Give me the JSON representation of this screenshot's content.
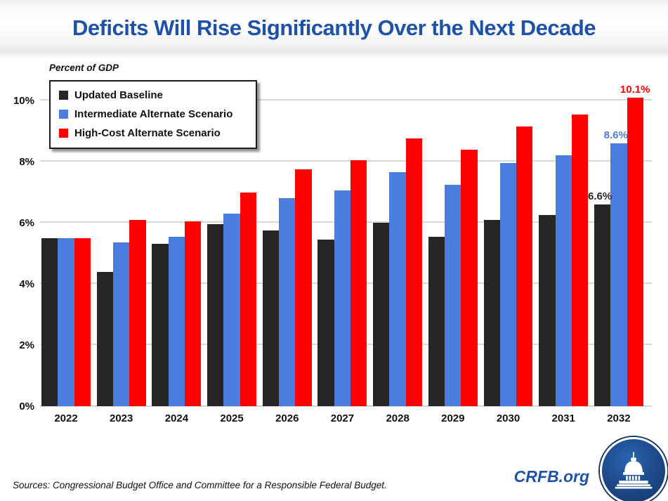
{
  "header": {
    "title": "Deficits Will Rise Significantly Over the Next Decade"
  },
  "chart_data": {
    "type": "bar",
    "title": "Deficits Will Rise Significantly Over the Next Decade",
    "ylabel": "Percent of GDP",
    "xlabel": "",
    "ylim": [
      0,
      10
    ],
    "grid": "horizontal",
    "legend_position": "top-left",
    "yticks": [
      {
        "value": 0,
        "label": "0%"
      },
      {
        "value": 2,
        "label": "2%"
      },
      {
        "value": 4,
        "label": "4%"
      },
      {
        "value": 6,
        "label": "6%"
      },
      {
        "value": 8,
        "label": "8%"
      },
      {
        "value": 10,
        "label": "10%"
      }
    ],
    "categories": [
      "2022",
      "2023",
      "2024",
      "2025",
      "2026",
      "2027",
      "2028",
      "2029",
      "2030",
      "2031",
      "2032"
    ],
    "series": [
      {
        "name": "Updated Baseline",
        "color": "#282526",
        "values": [
          5.5,
          4.4,
          5.3,
          5.95,
          5.75,
          5.45,
          6.0,
          5.55,
          6.1,
          6.25,
          6.6
        ],
        "end_label": "6.6%"
      },
      {
        "name": "Intermediate Alternate Scenario",
        "color": "#4B7CE0",
        "values": [
          5.5,
          5.35,
          5.55,
          6.3,
          6.8,
          7.05,
          7.65,
          7.25,
          7.95,
          8.2,
          8.6
        ],
        "end_label": "8.6%"
      },
      {
        "name": "High-Cost Alternate Scenario",
        "color": "#FE0000",
        "values": [
          5.5,
          6.1,
          6.05,
          7.0,
          7.75,
          8.05,
          8.75,
          8.4,
          9.15,
          9.55,
          10.1
        ],
        "end_label": "10.1%"
      }
    ]
  },
  "footer": {
    "sources": "Sources: Congressional Budget Office and Committee for a Responsible Federal Budget.",
    "site": "CRFB.org"
  }
}
